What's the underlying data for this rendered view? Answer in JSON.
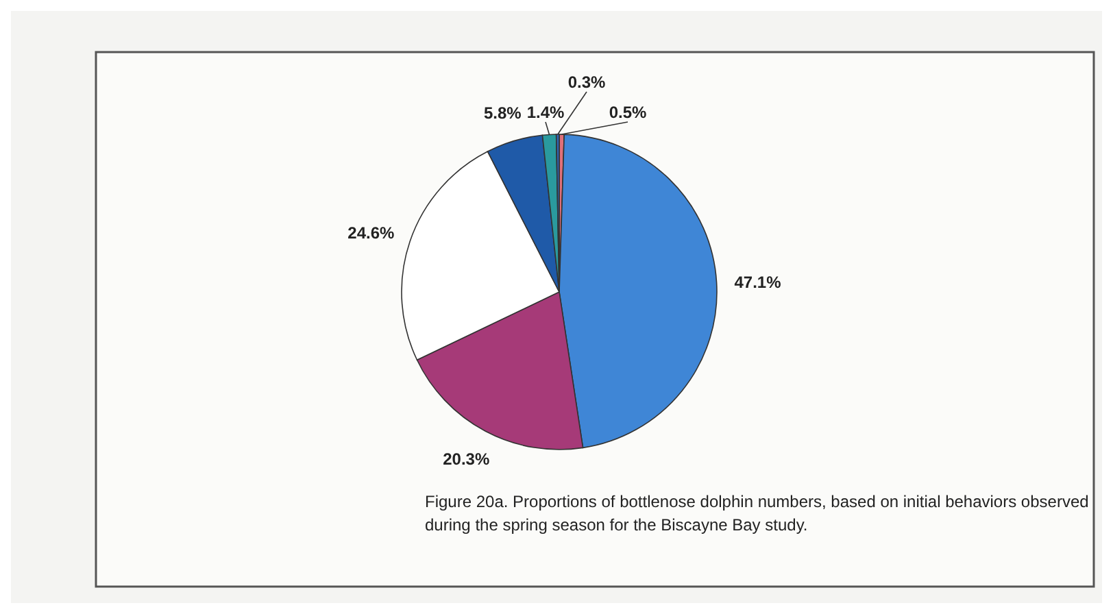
{
  "chart_data": {
    "type": "pie",
    "categories": [
      null,
      null,
      null,
      null,
      null,
      null,
      null
    ],
    "values": [
      0.5,
      47.1,
      20.3,
      24.6,
      5.8,
      1.4,
      0.3
    ],
    "colors": [
      "#e0707a",
      "#3f86d6",
      "#a63a78",
      "#ffffff",
      "#1f5aa8",
      "#2a9a9e",
      "#2f64b0"
    ],
    "value_labels": [
      "0.5%",
      "47.1%",
      "20.3%",
      "24.6%",
      "5.8%",
      "1.4%",
      "0.3%"
    ],
    "annotations": [
      "Figure 20a.  Proportions of bottlenose dolphin numbers, based on initial behaviors observed during the spring season for the Biscayne Bay study."
    ]
  }
}
